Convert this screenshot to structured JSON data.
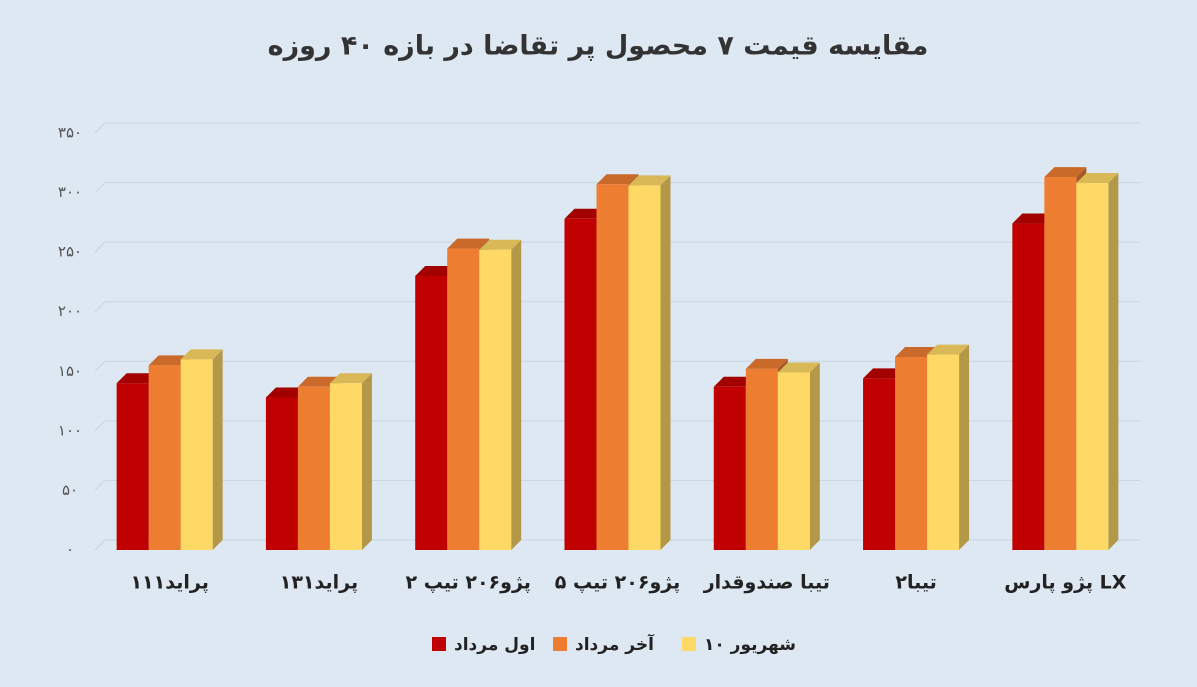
{
  "chart_data": {
    "type": "bar3d",
    "title": "مقایسه قیمت ۷ محصول پر تقاضا در بازه ۴۰ روزه",
    "categories": [
      "پراید۱۱۱",
      "پراید۱۳۱",
      "پژو۲۰۶ تیپ ۲",
      "پژو۲۰۶ تیپ ۵",
      "تیبا صندوقدار",
      "تیبا۲",
      "پژو پارس LX"
    ],
    "series": [
      {
        "name": "اول مرداد",
        "color": "#c00000",
        "values": [
          140,
          128,
          230,
          278,
          137,
          144,
          274
        ]
      },
      {
        "name": "آخر مرداد",
        "color": "#ed7d31",
        "values": [
          155,
          137,
          253,
          307,
          152,
          162,
          313
        ]
      },
      {
        "name": "۱۰ شهریور",
        "color": "#ffd966",
        "values": [
          160,
          140,
          252,
          306,
          149,
          164,
          308
        ]
      }
    ],
    "ylim": [
      0,
      350
    ],
    "yticks": [
      {
        "value": 0,
        "label": "۰"
      },
      {
        "value": 50,
        "label": "۵۰"
      },
      {
        "value": 100,
        "label": "۱۰۰"
      },
      {
        "value": 150,
        "label": "۱۵۰"
      },
      {
        "value": 200,
        "label": "۲۰۰"
      },
      {
        "value": 250,
        "label": "۲۵۰"
      },
      {
        "value": 300,
        "label": "۳۰۰"
      },
      {
        "value": 350,
        "label": "۳۵۰"
      }
    ],
    "grid": true
  }
}
